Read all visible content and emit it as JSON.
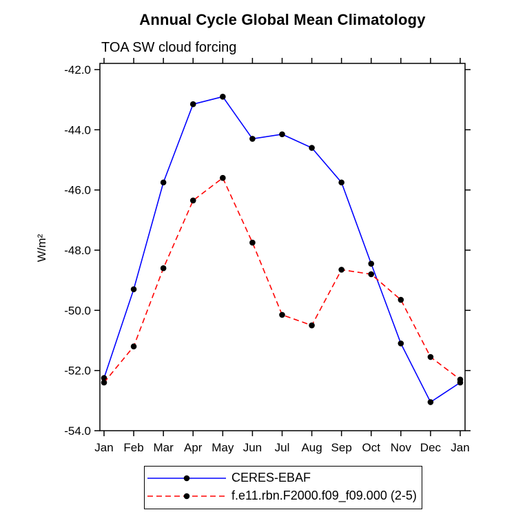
{
  "chart_data": {
    "type": "line",
    "title": "Annual Cycle Global Mean Climatology",
    "subtitle": "TOA SW cloud forcing",
    "ylabel": "W/m²",
    "xlabel": "",
    "categories": [
      "Jan",
      "Feb",
      "Mar",
      "Apr",
      "May",
      "Jun",
      "Jul",
      "Aug",
      "Sep",
      "Oct",
      "Nov",
      "Dec",
      "Jan"
    ],
    "ylim": [
      -54.0,
      -42.0
    ],
    "yticks": [
      -42.0,
      -44.0,
      -46.0,
      -48.0,
      -50.0,
      -52.0,
      -54.0
    ],
    "ytick_decimals": 1,
    "grid": false,
    "legend_position": "bottom",
    "marker_shape": "filled-circle",
    "marker_color": "#000000",
    "axis_color": "#000000",
    "series": [
      {
        "name": "CERES-EBAF",
        "color": "#0000ff",
        "line_style": "solid",
        "values": [
          -52.25,
          -49.3,
          -45.75,
          -43.15,
          -42.9,
          -44.3,
          -44.15,
          -44.6,
          -45.75,
          -48.45,
          -51.1,
          -53.05,
          -52.4
        ]
      },
      {
        "name": "f.e11.rbn.F2000.f09_f09.000 (2-5)",
        "color": "#ff0000",
        "line_style": "dashed",
        "values": [
          -52.4,
          -51.2,
          -48.6,
          -46.35,
          -45.6,
          -47.75,
          -50.15,
          -50.5,
          -48.65,
          -48.8,
          -49.65,
          -51.55,
          -52.3
        ]
      }
    ]
  }
}
